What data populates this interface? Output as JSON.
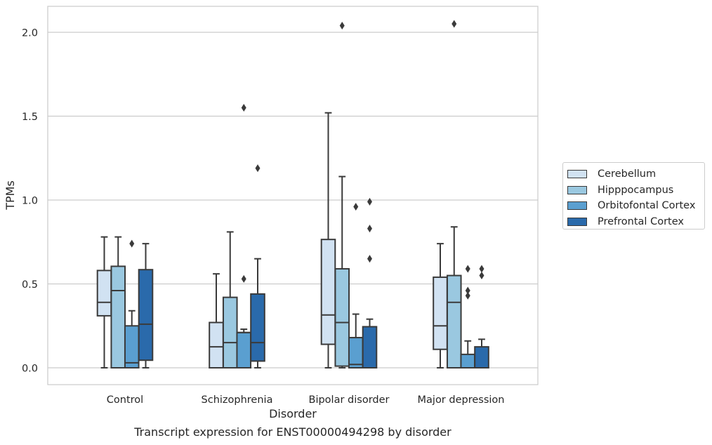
{
  "chart_data": {
    "type": "box",
    "xlabel": "Disorder",
    "ylabel": "TPMs",
    "ylim": [
      -0.1,
      2.15
    ],
    "yticks": [
      "0.0",
      "0.5",
      "1.0",
      "1.5",
      "2.0"
    ],
    "grid": "horizontal",
    "legend_position": "right",
    "categories": [
      "Control",
      "Schizophrenia",
      "Bipolar disorder",
      "Major depression"
    ],
    "series": [
      {
        "name": "Cerebellum",
        "color": "#d1e2f2",
        "boxes": [
          {
            "whislo": 0.0,
            "q1": 0.31,
            "med": 0.39,
            "q3": 0.58,
            "whishi": 0.78,
            "fliers": []
          },
          {
            "whislo": 0.0,
            "q1": 0.0,
            "med": 0.125,
            "q3": 0.27,
            "whishi": 0.56,
            "fliers": []
          },
          {
            "whislo": 0.0,
            "q1": 0.14,
            "med": 0.315,
            "q3": 0.765,
            "whishi": 1.52,
            "fliers": []
          },
          {
            "whislo": 0.0,
            "q1": 0.11,
            "med": 0.25,
            "q3": 0.54,
            "whishi": 0.74,
            "fliers": []
          }
        ]
      },
      {
        "name": "Hipppocampus",
        "color": "#9ac8e0",
        "boxes": [
          {
            "whislo": 0.0,
            "q1": 0.0,
            "med": 0.46,
            "q3": 0.605,
            "whishi": 0.78,
            "fliers": []
          },
          {
            "whislo": 0.0,
            "q1": 0.0,
            "med": 0.15,
            "q3": 0.42,
            "whishi": 0.81,
            "fliers": []
          },
          {
            "whislo": 0.0,
            "q1": 0.01,
            "med": 0.27,
            "q3": 0.59,
            "whishi": 1.14,
            "fliers": [
              2.04
            ]
          },
          {
            "whislo": 0.0,
            "q1": 0.0,
            "med": 0.39,
            "q3": 0.55,
            "whishi": 0.84,
            "fliers": [
              2.05
            ]
          }
        ]
      },
      {
        "name": "Orbitofontal Cortex",
        "color": "#5a9fd0",
        "boxes": [
          {
            "whislo": 0.0,
            "q1": 0.0,
            "med": 0.03,
            "q3": 0.25,
            "whishi": 0.34,
            "fliers": [
              0.74
            ]
          },
          {
            "whislo": 0.0,
            "q1": 0.0,
            "med": 0.21,
            "q3": 0.21,
            "whishi": 0.23,
            "fliers": [
              1.55,
              0.53
            ]
          },
          {
            "whislo": 0.0,
            "q1": 0.0,
            "med": 0.02,
            "q3": 0.18,
            "whishi": 0.32,
            "fliers": [
              0.96
            ]
          },
          {
            "whislo": 0.0,
            "q1": 0.0,
            "med": 0.0,
            "q3": 0.08,
            "whishi": 0.16,
            "fliers": [
              0.59,
              0.46,
              0.43
            ]
          }
        ]
      },
      {
        "name": "Prefrontal Cortex",
        "color": "#2a6aab",
        "boxes": [
          {
            "whislo": 0.0,
            "q1": 0.045,
            "med": 0.26,
            "q3": 0.585,
            "whishi": 0.74,
            "fliers": []
          },
          {
            "whislo": 0.0,
            "q1": 0.04,
            "med": 0.15,
            "q3": 0.44,
            "whishi": 0.65,
            "fliers": [
              1.19
            ]
          },
          {
            "whislo": 0.0,
            "q1": 0.0,
            "med": 0.0,
            "q3": 0.245,
            "whishi": 0.29,
            "fliers": [
              0.99,
              0.83,
              0.65
            ]
          },
          {
            "whislo": 0.0,
            "q1": 0.0,
            "med": 0.0,
            "q3": 0.125,
            "whishi": 0.17,
            "fliers": [
              0.59,
              0.55
            ]
          }
        ]
      }
    ]
  },
  "caption": "Transcript expression for ENST00000494298 by disorder"
}
